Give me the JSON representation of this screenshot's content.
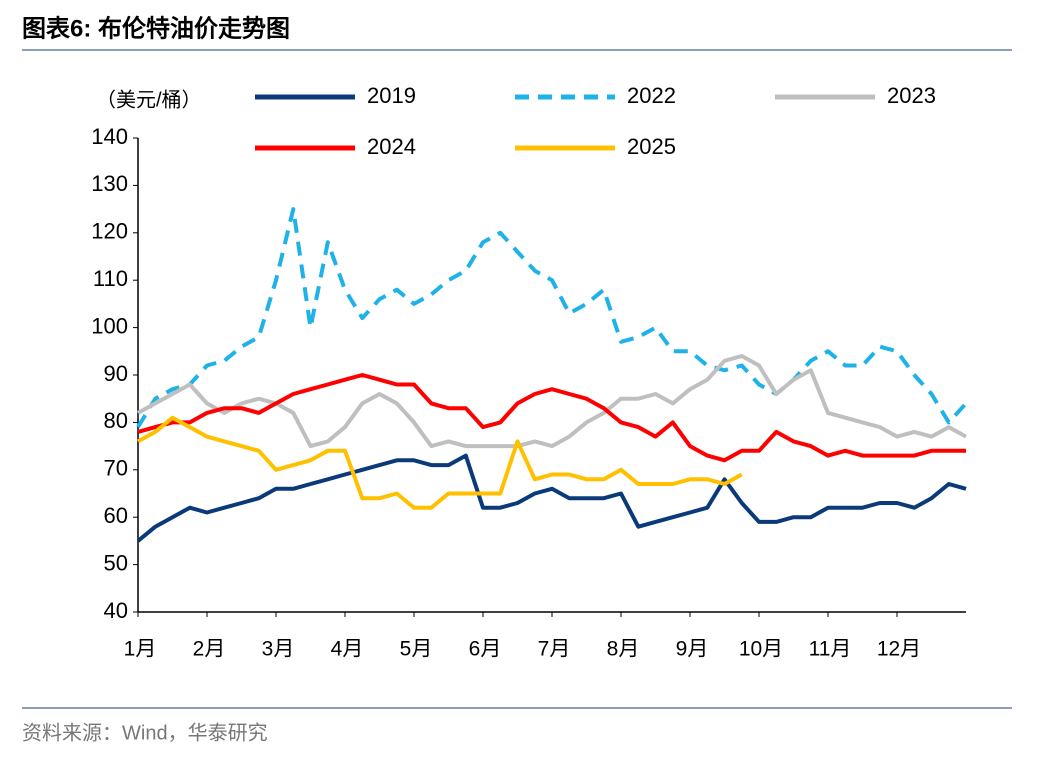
{
  "chart_data": {
    "type": "line",
    "title": "图表6:  布伦特油价走势图",
    "y_label": "（美元/桶）",
    "source": "资料来源：Wind，华泰研究",
    "x": [
      0,
      0.25,
      0.5,
      0.75,
      1,
      1.25,
      1.5,
      1.75,
      2,
      2.25,
      2.5,
      2.75,
      3,
      3.25,
      3.5,
      3.75,
      4,
      4.25,
      4.5,
      4.75,
      5,
      5.25,
      5.5,
      5.75,
      6,
      6.25,
      6.5,
      6.75,
      7,
      7.25,
      7.5,
      7.75,
      8,
      8.25,
      8.5,
      8.75,
      9,
      9.25,
      9.5,
      9.75,
      10,
      10.25,
      10.5,
      10.75,
      11,
      11.25,
      11.5,
      11.75,
      12
    ],
    "xlim": [
      0,
      12
    ],
    "xticks": [
      {
        "value": 0,
        "label": "1月"
      },
      {
        "value": 1,
        "label": "2月"
      },
      {
        "value": 2,
        "label": "3月"
      },
      {
        "value": 3,
        "label": "4月"
      },
      {
        "value": 4,
        "label": "5月"
      },
      {
        "value": 5,
        "label": "6月"
      },
      {
        "value": 6,
        "label": "7月"
      },
      {
        "value": 7,
        "label": "8月"
      },
      {
        "value": 8,
        "label": "9月"
      },
      {
        "value": 9,
        "label": "10月"
      },
      {
        "value": 10,
        "label": "11月"
      },
      {
        "value": 11,
        "label": "12月"
      }
    ],
    "ylim": [
      40,
      140
    ],
    "yticks": [
      40,
      50,
      60,
      70,
      80,
      90,
      100,
      110,
      120,
      130,
      140
    ],
    "grid": false,
    "series": [
      {
        "name": "2019",
        "color": "#0b3a7a",
        "style": "solid",
        "values": [
          55,
          58,
          60,
          62,
          61,
          62,
          63,
          64,
          66,
          66,
          67,
          68,
          69,
          70,
          71,
          72,
          72,
          71,
          71,
          73,
          62,
          62,
          63,
          65,
          66,
          64,
          64,
          64,
          65,
          58,
          59,
          60,
          61,
          62,
          68,
          63,
          59,
          59,
          60,
          60,
          62,
          62,
          62,
          63,
          63,
          62,
          64,
          67,
          66
        ]
      },
      {
        "name": "2022",
        "color": "#1fb2e8",
        "style": "dashed",
        "values": [
          79,
          85,
          87,
          88,
          92,
          93,
          96,
          98,
          110,
          125,
          100,
          118,
          108,
          102,
          106,
          108,
          105,
          107,
          110,
          112,
          118,
          120,
          116,
          112,
          110,
          103,
          105,
          108,
          97,
          98,
          100,
          95,
          95,
          92,
          91,
          92,
          88,
          86,
          89,
          93,
          95,
          92,
          92,
          96,
          95,
          90,
          86,
          80,
          84
        ]
      },
      {
        "name": "2023",
        "color": "#bfbfbf",
        "style": "solid",
        "values": [
          82,
          84,
          86,
          88,
          84,
          82,
          84,
          85,
          84,
          82,
          75,
          76,
          79,
          84,
          86,
          84,
          80,
          75,
          76,
          75,
          75,
          75,
          75,
          76,
          75,
          77,
          80,
          82,
          85,
          85,
          86,
          84,
          87,
          89,
          93,
          94,
          92,
          86,
          89,
          91,
          82,
          81,
          80,
          79,
          77,
          78,
          77,
          79,
          77
        ]
      },
      {
        "name": "2024",
        "color": "#ff0000",
        "style": "solid",
        "values": [
          78,
          79,
          80,
          80,
          82,
          83,
          83,
          82,
          84,
          86,
          87,
          88,
          89,
          90,
          89,
          88,
          88,
          84,
          83,
          83,
          79,
          80,
          84,
          86,
          87,
          86,
          85,
          83,
          80,
          79,
          77,
          80,
          75,
          73,
          72,
          74,
          74,
          78,
          76,
          75,
          73,
          74,
          73,
          73,
          73,
          73,
          74,
          74,
          74
        ]
      },
      {
        "name": "2025",
        "color": "#ffc000",
        "style": "solid",
        "values": [
          76,
          78,
          81,
          79,
          77,
          76,
          75,
          74,
          70,
          71,
          72,
          74,
          74,
          64,
          64,
          65,
          62,
          62,
          65,
          65,
          65,
          65,
          76,
          68,
          69,
          69,
          68,
          68,
          70,
          67,
          67,
          67,
          68,
          68,
          67,
          69,
          null,
          null,
          null,
          null,
          null,
          null,
          null,
          null,
          null,
          null,
          null,
          null,
          null
        ]
      }
    ]
  }
}
